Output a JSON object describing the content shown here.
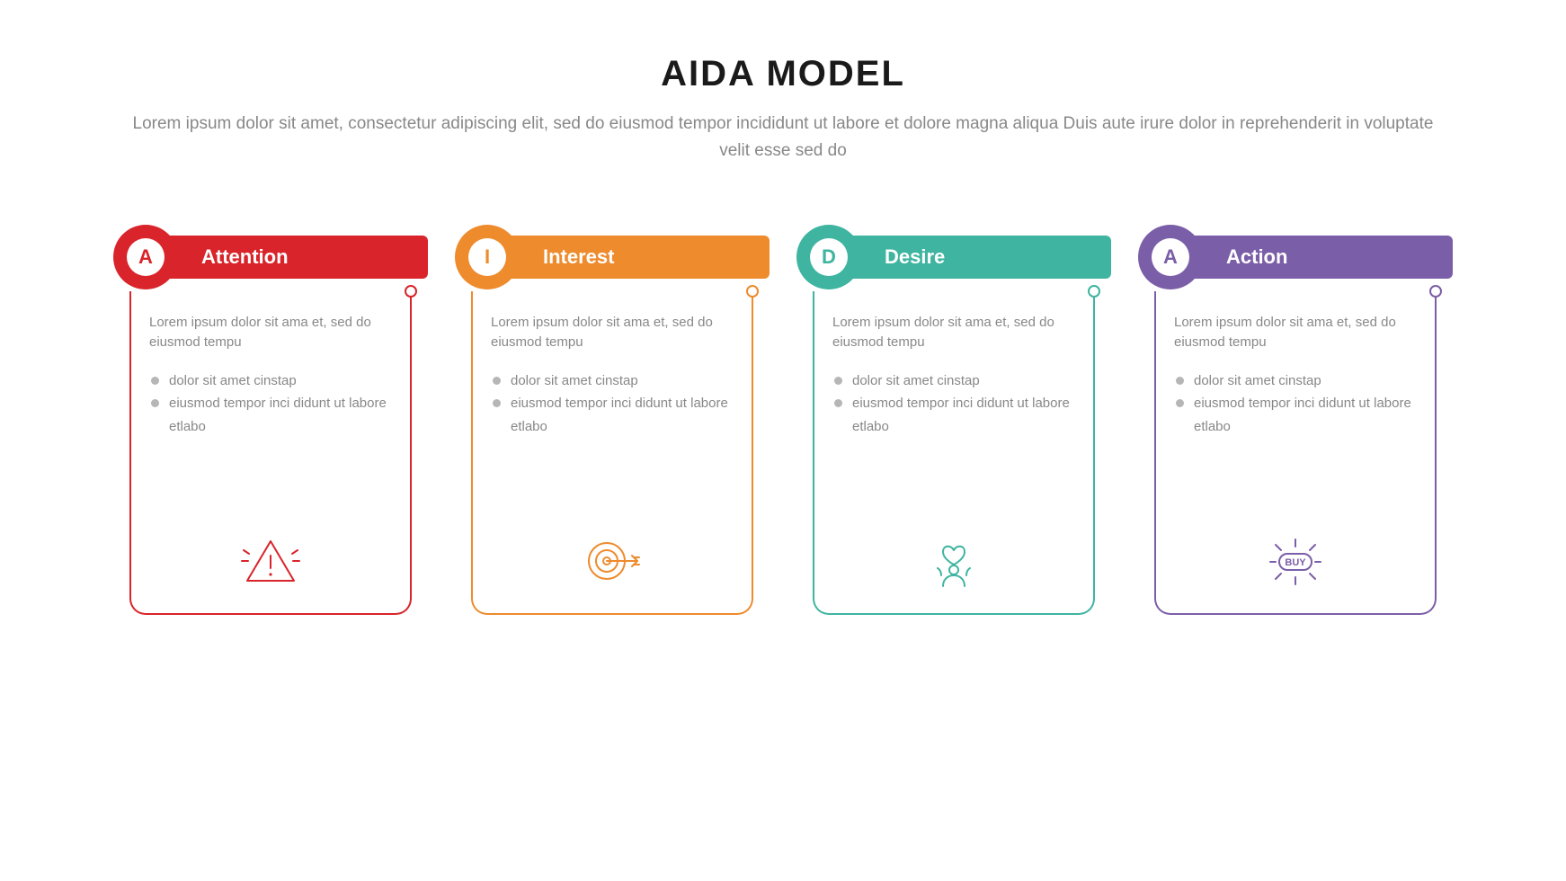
{
  "title": "AIDA MODEL",
  "title_fontsize": 40,
  "subtitle": "Lorem ipsum dolor sit amet, consectetur adipiscing elit, sed do eiusmod tempor incididunt ut labore et dolore magna aliqua Duis aute irure dolor in reprehenderit in voluptate velit esse sed do",
  "subtitle_fontsize": 19,
  "background_color": "#ffffff",
  "text_muted": "#888888",
  "bullet_color": "#b6b6b6",
  "header_label_fontsize": 22,
  "header_letter_fontsize": 22,
  "body_fontsize": 15,
  "cards": [
    {
      "letter": "A",
      "label": "Attention",
      "color": "#d8242a",
      "icon": "alert",
      "desc": "Lorem ipsum dolor sit ama et, sed do eiusmod tempu",
      "bullets": [
        "dolor sit amet cinstap",
        "eiusmod tempor inci didunt ut labore etlabo"
      ]
    },
    {
      "letter": "I",
      "label": "Interest",
      "color": "#ee8b2d",
      "icon": "target",
      "desc": "Lorem ipsum dolor sit ama et, sed do eiusmod tempu",
      "bullets": [
        "dolor sit amet cinstap",
        "eiusmod tempor inci didunt ut labore etlabo"
      ]
    },
    {
      "letter": "D",
      "label": "Desire",
      "color": "#3fb4a0",
      "icon": "heart-person",
      "desc": "Lorem ipsum dolor sit ama et, sed do eiusmod tempu",
      "bullets": [
        "dolor sit amet cinstap",
        "eiusmod tempor inci didunt ut labore etlabo"
      ]
    },
    {
      "letter": "A",
      "label": "Action",
      "color": "#7b5ea8",
      "icon": "buy",
      "desc": "Lorem ipsum dolor sit ama et, sed do eiusmod tempu",
      "bullets": [
        "dolor sit amet cinstap",
        "eiusmod tempor inci didunt ut labore etlabo"
      ]
    }
  ]
}
